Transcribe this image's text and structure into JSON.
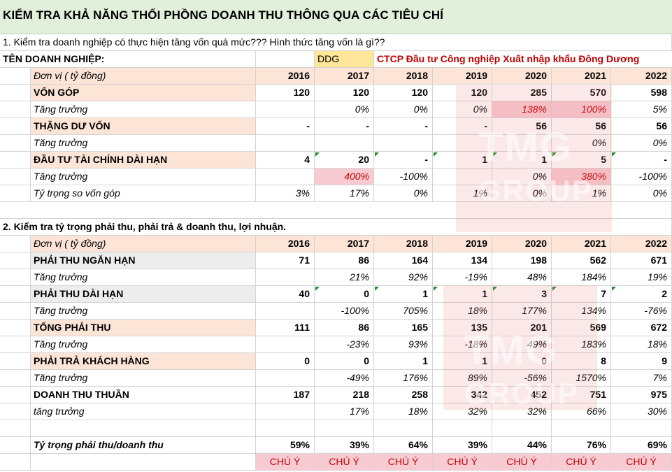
{
  "title": "KIỂM TRA KHẢ NĂNG THỔI PHỒNG DOANH THU THÔNG QUA CÁC TIÊU CHÍ",
  "section1": {
    "heading": "1. Kiểm tra doanh nghiệp có thực hiện tăng vốn quá mức??? Hình thức tăng vốn là gì??",
    "company_label": "TÊN DOANH NGHIỆP:",
    "ticker": "DDG",
    "company_name": "CTCP Đầu tư Công nghiệp Xuất nhập khẩu Đông Dương",
    "unit": "Đơn vị ( tỷ đồng)",
    "years": [
      "2016",
      "2017",
      "2018",
      "2019",
      "2020",
      "2021",
      "2022"
    ],
    "rows": [
      {
        "label": "VỐN GÓP",
        "style": "header",
        "values": [
          "120",
          "120",
          "120",
          "120",
          "285",
          "570",
          "598"
        ]
      },
      {
        "label": "Tăng trưởng",
        "style": "sub",
        "values": [
          "",
          "0%",
          "0%",
          "0%",
          "138%",
          "100%",
          "5%"
        ]
      },
      {
        "label": "THẶNG DƯ VỐN",
        "style": "header",
        "values": [
          "-",
          "-",
          "-",
          "-",
          "56",
          "56",
          "56"
        ]
      },
      {
        "label": "Tăng trưởng",
        "style": "sub",
        "values": [
          "",
          "",
          "",
          "",
          "",
          "0%",
          "0%"
        ]
      },
      {
        "label": "ĐẦU TƯ TÀI CHÍNH DÀI HẠN",
        "style": "header",
        "values": [
          "4",
          "20",
          "-",
          "1",
          "1",
          "5",
          "-"
        ]
      },
      {
        "label": "Tăng trưởng",
        "style": "sub",
        "values": [
          "",
          "400%",
          "-100%",
          "",
          "0%",
          "380%",
          "-100%"
        ]
      },
      {
        "label": "Tỷ trọng so vốn góp",
        "style": "sub",
        "values": [
          "3%",
          "17%",
          "0%",
          "1%",
          "0%",
          "1%",
          "0%"
        ]
      }
    ]
  },
  "section2": {
    "heading": "2. Kiểm tra tỷ trọng phải thu, phải trả & doanh thu, lợi nhuận.",
    "unit": "Đơn vị ( tỷ đồng)",
    "years": [
      "2016",
      "2017",
      "2018",
      "2019",
      "2020",
      "2021",
      "2022"
    ],
    "rows": [
      {
        "label": "PHẢI THU NGẮN HẠN",
        "style": "header-grey",
        "values": [
          "71",
          "86",
          "164",
          "134",
          "198",
          "562",
          "671"
        ]
      },
      {
        "label": "Tăng trưởng",
        "style": "sub",
        "values": [
          "",
          "21%",
          "92%",
          "-19%",
          "48%",
          "184%",
          "19%"
        ]
      },
      {
        "label": "PHẢI THU DÀI HẠN",
        "style": "header-grey",
        "values": [
          "40",
          "0",
          "1",
          "1",
          "3",
          "7",
          "2"
        ]
      },
      {
        "label": "Tăng trưởng",
        "style": "sub",
        "values": [
          "",
          "-100%",
          "705%",
          "18%",
          "177%",
          "134%",
          "-76%"
        ]
      },
      {
        "label": "TỔNG PHẢI THU",
        "style": "header",
        "values": [
          "111",
          "86",
          "165",
          "135",
          "201",
          "569",
          "672"
        ]
      },
      {
        "label": "Tăng trưởng",
        "style": "sub",
        "values": [
          "",
          "-23%",
          "93%",
          "-18%",
          "49%",
          "183%",
          "18%"
        ]
      },
      {
        "label": "PHẢI TRẢ KHÁCH HÀNG",
        "style": "header",
        "values": [
          "0",
          "0",
          "1",
          "1",
          "0",
          "8",
          "9"
        ]
      },
      {
        "label": "Tăng trưởng",
        "style": "sub",
        "values": [
          "",
          "-49%",
          "176%",
          "89%",
          "-56%",
          "1570%",
          "7%"
        ]
      },
      {
        "label": "DOANH THU THUẦN",
        "style": "plain-bold",
        "values": [
          "187",
          "218",
          "258",
          "342",
          "452",
          "751",
          "975"
        ]
      },
      {
        "label": "tăng trưởng",
        "style": "sub",
        "values": [
          "",
          "17%",
          "18%",
          "32%",
          "32%",
          "66%",
          "30%"
        ]
      },
      {
        "label": "",
        "style": "blank",
        "values": [
          "",
          "",
          "",
          "",
          "",
          "",
          ""
        ]
      },
      {
        "label": "Tỷ trọng phải thu/doanh thu",
        "style": "ratio",
        "values": [
          "59%",
          "39%",
          "64%",
          "39%",
          "44%",
          "76%",
          "69%"
        ]
      },
      {
        "label": "",
        "style": "warn",
        "values": [
          "CHÚ Ý",
          "CHÚ Ý",
          "CHÚ Ý",
          "CHÚ Ý",
          "CHÚ Ý",
          "CHÚ Ý",
          "CHÚ Ý"
        ]
      }
    ]
  },
  "watermark": "TMG GROUP",
  "colors": {
    "title_bg": "#e2efda",
    "header_peach": "#fce4d6",
    "grey_label": "#ededed",
    "ticker_bg": "#ffe699",
    "company_red": "#c00000",
    "highlight_pink": "#f8cbd3",
    "warn_pink": "#f8cbd3",
    "triangle": "#1e8c2e"
  }
}
